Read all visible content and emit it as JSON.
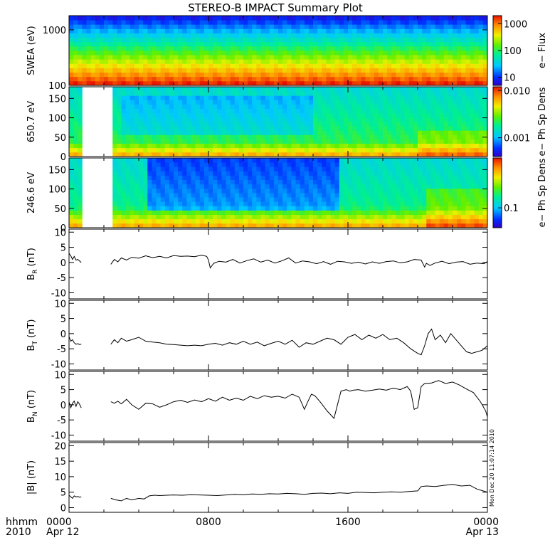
{
  "title": "STEREO-B IMPACT Summary Plot",
  "x_axis": {
    "row1_label": "hhmm",
    "row2_label": "2010",
    "ticks": [
      {
        "h": 0,
        "time": "0000",
        "date": "Apr 12"
      },
      {
        "h": 8,
        "time": "0800",
        "date": ""
      },
      {
        "h": 16,
        "time": "1600",
        "date": ""
      },
      {
        "h": 24,
        "time": "0000",
        "date": "Apr 13"
      }
    ]
  },
  "timestamp": "Mon Dec 20 11:07:14 2010",
  "chart_data": [
    {
      "type": "heatmap",
      "ylabel": "SWEA (eV)",
      "yscale": "log",
      "ylim": [
        100,
        1800
      ],
      "yticks": [
        100,
        1000
      ],
      "colorbar": {
        "label": "e− Flux",
        "scale": "log",
        "range": [
          5,
          2000
        ],
        "ticks": [
          10,
          100,
          1000
        ]
      },
      "xlim": [
        0,
        24
      ],
      "gaps": []
    },
    {
      "type": "heatmap",
      "ylabel": "650.7 eV",
      "ylim": [
        0,
        180
      ],
      "yticks": [
        0,
        50,
        100,
        150
      ],
      "colorbar": {
        "label": "e− Ph Sp Dens",
        "scale": "log",
        "range": [
          0.0004,
          0.012
        ],
        "ticks": [
          0.001,
          0.01
        ],
        "tick_labels": [
          "0.001",
          "0.010"
        ]
      },
      "xlim": [
        0,
        24
      ],
      "gaps": [
        [
          0.7,
          2.4
        ]
      ]
    },
    {
      "type": "heatmap",
      "ylabel": "246.6 eV",
      "ylim": [
        0,
        180
      ],
      "yticks": [
        0,
        50,
        100,
        150
      ],
      "colorbar": {
        "label": "e− Ph Sp Dens",
        "scale": "log",
        "range": [
          0.04,
          1.0
        ],
        "ticks": [
          0.1
        ],
        "tick_labels": [
          "0.1"
        ]
      },
      "xlim": [
        0,
        24
      ],
      "gaps": [
        [
          0.7,
          2.4
        ]
      ]
    },
    {
      "type": "line",
      "ylabel": "B_R (nT)",
      "ylim": [
        -12,
        11
      ],
      "yticks": [
        -10,
        -5,
        0,
        5,
        10
      ],
      "xlim": [
        0,
        24
      ],
      "segments": [
        {
          "x": [
            0.0,
            0.1,
            0.2,
            0.3,
            0.4,
            0.5,
            0.6,
            0.7
          ],
          "y": [
            3,
            2.2,
            1,
            2,
            0.8,
            1,
            0.5,
            0
          ]
        },
        {
          "x": [
            2.4,
            2.6,
            2.8,
            3.0,
            3.3,
            3.6,
            4.0,
            4.4,
            4.8,
            5.2,
            5.6,
            6.0,
            6.4,
            6.8,
            7.2,
            7.6,
            7.9,
            8.0,
            8.1,
            8.3,
            8.6,
            9.0,
            9.4,
            9.8,
            10.2,
            10.6,
            11.0,
            11.4,
            11.8,
            12.2,
            12.6,
            13.0,
            13.4,
            13.8,
            14.2,
            14.6,
            15.0,
            15.4,
            15.8,
            16.2,
            16.6,
            17.0,
            17.4,
            17.8,
            18.2,
            18.6,
            19.0,
            19.4,
            19.8,
            20.2,
            20.4,
            20.5,
            20.7,
            21.0,
            21.4,
            21.8,
            22.2,
            22.6,
            23.0,
            23.4,
            23.8,
            24.0
          ],
          "y": [
            -0.6,
            1,
            0.2,
            1.5,
            0.8,
            1.7,
            1.4,
            2.2,
            1.6,
            2,
            1.5,
            2.3,
            2,
            2.1,
            1.9,
            2.4,
            2,
            0.8,
            -1.8,
            -0.3,
            0.4,
            0.1,
            1,
            -0.2,
            0.6,
            1.2,
            0.1,
            0.8,
            -0.2,
            0.5,
            1.5,
            -0.2,
            0.5,
            0.2,
            -0.4,
            0.3,
            -0.6,
            0.4,
            0.2,
            -0.3,
            0.1,
            -0.5,
            0.2,
            -0.3,
            0.3,
            0.5,
            -0.1,
            0.2,
            1,
            0.8,
            -1.5,
            -0.3,
            -1,
            -0.2,
            0.4,
            -0.4,
            0.1,
            0.3,
            -0.6,
            -0.2,
            -0.4,
            0.3
          ]
        }
      ]
    },
    {
      "type": "line",
      "ylabel": "B_T (nT)",
      "ylim": [
        -12,
        11
      ],
      "yticks": [
        -10,
        -5,
        0,
        5,
        10
      ],
      "xlim": [
        0,
        24
      ],
      "segments": [
        {
          "x": [
            0.0,
            0.1,
            0.2,
            0.3,
            0.4,
            0.5,
            0.6,
            0.7
          ],
          "y": [
            -1,
            -2.5,
            -2,
            -3,
            -3.5,
            -3.3,
            -3.6,
            -3.5
          ]
        },
        {
          "x": [
            2.4,
            2.6,
            2.8,
            3.0,
            3.3,
            3.6,
            4.0,
            4.4,
            4.8,
            5.2,
            5.6,
            6.0,
            6.4,
            6.8,
            7.2,
            7.6,
            8.0,
            8.4,
            8.8,
            9.2,
            9.6,
            10.0,
            10.4,
            10.8,
            11.2,
            11.6,
            12.0,
            12.4,
            12.8,
            13.2,
            13.6,
            14.0,
            14.4,
            14.8,
            15.2,
            15.6,
            16.0,
            16.4,
            16.8,
            17.2,
            17.6,
            18.0,
            18.4,
            18.8,
            19.2,
            19.6,
            20.0,
            20.2,
            20.4,
            20.6,
            20.8,
            21.0,
            21.3,
            21.6,
            21.9,
            22.2,
            22.5,
            22.8,
            23.1,
            23.4,
            23.7,
            24.0
          ],
          "y": [
            -3.5,
            -2,
            -3,
            -1.5,
            -2.5,
            -2,
            -1.2,
            -2.5,
            -2.8,
            -3,
            -3.5,
            -3.6,
            -3.8,
            -4,
            -3.8,
            -4,
            -3.5,
            -3.2,
            -3.8,
            -3,
            -3.5,
            -2.5,
            -3.5,
            -2.8,
            -4,
            -3.2,
            -2.5,
            -3.5,
            -2.2,
            -4.5,
            -3,
            -3.5,
            -2.5,
            -1.5,
            -2,
            -3.5,
            -1.2,
            -0.3,
            -2,
            -0.5,
            -1.5,
            -0.3,
            -2,
            -1.5,
            -3,
            -5,
            -6.5,
            -7,
            -4,
            0,
            1.5,
            -2,
            -0.5,
            -3,
            0,
            -2,
            -4,
            -6,
            -6.5,
            -6,
            -5.5,
            -4
          ]
        }
      ]
    },
    {
      "type": "line",
      "ylabel": "B_N (nT)",
      "ylim": [
        -12,
        11
      ],
      "yticks": [
        -10,
        -5,
        0,
        5,
        10
      ],
      "xlim": [
        0,
        24
      ],
      "segments": [
        {
          "x": [
            0.0,
            0.1,
            0.2,
            0.3,
            0.4,
            0.5,
            0.6,
            0.7
          ],
          "y": [
            1,
            -1,
            0.5,
            1.2,
            -0.5,
            1,
            0.2,
            -1
          ]
        },
        {
          "x": [
            2.4,
            2.6,
            2.8,
            3.0,
            3.3,
            3.6,
            4.0,
            4.4,
            4.8,
            5.2,
            5.6,
            6.0,
            6.4,
            6.8,
            7.2,
            7.6,
            8.0,
            8.4,
            8.8,
            9.2,
            9.6,
            10.0,
            10.4,
            10.8,
            11.2,
            11.6,
            12.0,
            12.4,
            12.8,
            13.2,
            13.5,
            13.7,
            13.9,
            14.1,
            14.4,
            14.8,
            15.2,
            15.6,
            15.9,
            16.1,
            16.3,
            16.6,
            17.0,
            17.4,
            17.8,
            18.2,
            18.6,
            19.0,
            19.4,
            19.6,
            19.8,
            20.0,
            20.2,
            20.4,
            20.8,
            21.2,
            21.6,
            22.0,
            22.4,
            22.8,
            23.2,
            23.6,
            23.9,
            24.0
          ],
          "y": [
            1,
            0.5,
            1.2,
            0.3,
            1.8,
            0,
            -1.5,
            0.5,
            0.3,
            -0.8,
            0,
            1,
            1.5,
            0.8,
            1.6,
            1,
            2,
            1.2,
            2.5,
            1.5,
            2.2,
            1.5,
            2.8,
            2,
            3,
            2.5,
            2.8,
            2.2,
            3.5,
            2.5,
            -1.5,
            1,
            3.5,
            3,
            1,
            -2,
            -4.5,
            4.5,
            5,
            4.5,
            4.8,
            5,
            4.5,
            4.8,
            5.2,
            4.8,
            5.5,
            5,
            6,
            4.5,
            -1.5,
            -1,
            6,
            7,
            7.2,
            8,
            7,
            7.5,
            6.5,
            5.2,
            4,
            1,
            -2,
            -4
          ]
        }
      ]
    },
    {
      "type": "line",
      "ylabel": "|B| (nT)",
      "ylim": [
        -1.5,
        21
      ],
      "yticks": [
        0,
        5,
        10,
        15,
        20
      ],
      "xlim": [
        0,
        24
      ],
      "segments": [
        {
          "x": [
            0.0,
            0.1,
            0.2,
            0.3,
            0.4,
            0.5,
            0.6,
            0.7
          ],
          "y": [
            4,
            3.5,
            3,
            3.8,
            3.5,
            3.6,
            3.4,
            3.5
          ]
        },
        {
          "x": [
            2.4,
            2.7,
            3.0,
            3.3,
            3.6,
            4.0,
            4.3,
            4.6,
            4.9,
            5.2,
            5.6,
            6.0,
            6.5,
            7.0,
            7.5,
            8.0,
            8.5,
            9.0,
            9.5,
            10.0,
            10.5,
            11.0,
            11.5,
            12.0,
            12.5,
            13.0,
            13.5,
            14.0,
            14.5,
            15.0,
            15.5,
            16.0,
            16.5,
            17.0,
            17.5,
            18.0,
            18.5,
            19.0,
            19.5,
            20.0,
            20.2,
            20.5,
            21.0,
            21.5,
            22.0,
            22.5,
            23.0,
            23.4,
            23.7,
            24.0
          ],
          "y": [
            3,
            2.5,
            2.2,
            3,
            2.5,
            3,
            2.8,
            3.8,
            4,
            3.9,
            4,
            4.1,
            4,
            4.2,
            4.1,
            4,
            3.9,
            4.1,
            4.3,
            4.2,
            4.4,
            4.3,
            4.5,
            4.4,
            4.6,
            4.5,
            4.3,
            4.6,
            4.7,
            4.5,
            4.8,
            4.6,
            5,
            4.9,
            4.8,
            5,
            5.1,
            5,
            5.2,
            5.4,
            6.8,
            7,
            6.8,
            7.2,
            7.5,
            7,
            7.2,
            6,
            5.5,
            5
          ]
        }
      ]
    }
  ]
}
